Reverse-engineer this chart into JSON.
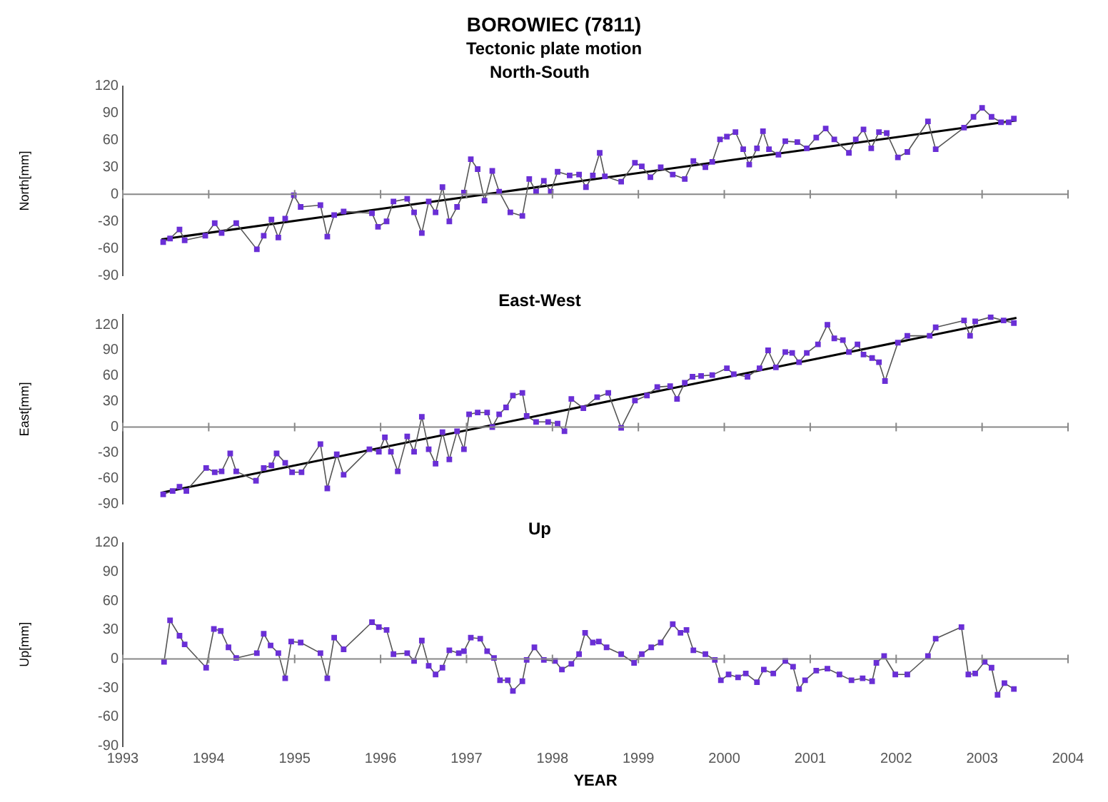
{
  "chart_data": [
    {
      "type": "line",
      "title": "North-South",
      "annotations": [
        "BOROWIEC (7811)",
        "Tectonic plate motion"
      ],
      "ylabel": "North[mm]",
      "ref_lines": [
        {
          "axis": "y",
          "value": 0,
          "color": "#888888"
        }
      ],
      "xlim": [
        1993,
        2004
      ],
      "xticks": [
        1993,
        1994,
        1995,
        1996,
        1997,
        1998,
        1999,
        2000,
        2001,
        2002,
        2003,
        2004
      ],
      "ylim": [
        -90,
        120
      ],
      "yticks": [
        -90,
        -60,
        -30,
        0,
        30,
        60,
        90,
        120
      ],
      "tick_labels": "y",
      "grid": false,
      "legend": false,
      "marker": "square",
      "line_style": "solid",
      "series": [
        {
          "color": "#6a2fd6",
          "x": [
            1993.47,
            1993.55,
            1993.66,
            1993.72,
            1993.96,
            1994.07,
            1994.15,
            1994.32,
            1994.56,
            1994.64,
            1994.73,
            1994.81,
            1994.89,
            1994.99,
            1995.07,
            1995.3,
            1995.38,
            1995.46,
            1995.57,
            1995.9,
            1995.97,
            1996.07,
            1996.15,
            1996.31,
            1996.39,
            1996.48,
            1996.56,
            1996.64,
            1996.72,
            1996.8,
            1996.89,
            1996.97,
            1997.05,
            1997.13,
            1997.21,
            1997.3,
            1997.38,
            1997.51,
            1997.65,
            1997.73,
            1997.81,
            1997.9,
            1997.98,
            1998.06,
            1998.2,
            1998.31,
            1998.39,
            1998.47,
            1998.55,
            1998.61,
            1998.8,
            1998.96,
            1999.04,
            1999.14,
            1999.26,
            1999.4,
            1999.54,
            1999.64,
            1999.78,
            1999.86,
            1999.95,
            2000.03,
            2000.13,
            2000.22,
            2000.29,
            2000.38,
            2000.45,
            2000.52,
            2000.63,
            2000.71,
            2000.85,
            2000.96,
            2001.07,
            2001.18,
            2001.28,
            2001.45,
            2001.53,
            2001.62,
            2001.71,
            2001.8,
            2001.89,
            2002.02,
            2002.13,
            2002.37,
            2002.46,
            2002.79,
            2002.9,
            2003.0,
            2003.11,
            2003.22,
            2003.31,
            2003.37
          ],
          "values": [
            -53,
            -49,
            -39,
            -51,
            -46,
            -32,
            -43,
            -32,
            -61,
            -46,
            -28,
            -48,
            -27,
            -1,
            -14,
            -12,
            -47,
            -23,
            -19,
            -21,
            -36,
            -30,
            -8,
            -5,
            -20,
            -43,
            -8,
            -20,
            8,
            -30,
            -14,
            2,
            39,
            28,
            -7,
            26,
            3,
            -20,
            -24,
            17,
            3,
            15,
            3,
            25,
            21,
            22,
            8,
            21,
            46,
            20,
            14,
            35,
            31,
            19,
            30,
            22,
            17,
            37,
            30,
            36,
            61,
            64,
            69,
            50,
            33,
            51,
            70,
            50,
            44,
            59,
            58,
            51,
            63,
            73,
            61,
            46,
            61,
            72,
            51,
            69,
            68,
            41,
            47,
            81,
            50,
            74,
            86,
            96,
            86,
            80,
            80,
            84
          ]
        },
        {
          "type": "line",
          "color": "#000000",
          "marker": "none",
          "x": [
            1993.45,
            2003.4
          ],
          "values": [
            -50,
            82
          ]
        }
      ]
    },
    {
      "type": "line",
      "title": "East-West",
      "ylabel": "East[mm]",
      "ref_lines": [
        {
          "axis": "y",
          "value": 0,
          "color": "#888888"
        }
      ],
      "xlim": [
        1993,
        2004
      ],
      "xticks": [
        1993,
        1994,
        1995,
        1996,
        1997,
        1998,
        1999,
        2000,
        2001,
        2002,
        2003,
        2004
      ],
      "ylim": [
        -90,
        132
      ],
      "yticks": [
        -90,
        -60,
        -30,
        0,
        30,
        60,
        90,
        120
      ],
      "tick_labels": "y",
      "grid": false,
      "legend": false,
      "marker": "square",
      "line_style": "solid",
      "series": [
        {
          "color": "#6a2fd6",
          "x": [
            1993.47,
            1993.58,
            1993.66,
            1993.74,
            1993.97,
            1994.07,
            1994.15,
            1994.25,
            1994.32,
            1994.55,
            1994.64,
            1994.73,
            1994.79,
            1994.89,
            1994.97,
            1995.08,
            1995.3,
            1995.38,
            1995.49,
            1995.57,
            1995.87,
            1995.98,
            1996.05,
            1996.12,
            1996.2,
            1996.31,
            1996.39,
            1996.48,
            1996.56,
            1996.64,
            1996.72,
            1996.8,
            1996.89,
            1996.97,
            1997.03,
            1997.13,
            1997.24,
            1997.3,
            1997.38,
            1997.46,
            1997.54,
            1997.65,
            1997.7,
            1997.81,
            1997.95,
            1998.06,
            1998.14,
            1998.22,
            1998.36,
            1998.52,
            1998.65,
            1998.8,
            1998.96,
            1999.1,
            1999.22,
            1999.37,
            1999.45,
            1999.54,
            1999.63,
            1999.73,
            1999.86,
            2000.03,
            2000.11,
            2000.27,
            2000.41,
            2000.51,
            2000.6,
            2000.71,
            2000.79,
            2000.87,
            2000.96,
            2001.09,
            2001.2,
            2001.28,
            2001.38,
            2001.45,
            2001.55,
            2001.62,
            2001.72,
            2001.8,
            2001.87,
            2002.02,
            2002.13,
            2002.39,
            2002.46,
            2002.79,
            2002.86,
            2002.92,
            2003.1,
            2003.25,
            2003.37
          ],
          "values": [
            -79,
            -75,
            -70,
            -75,
            -48,
            -53,
            -52,
            -31,
            -52,
            -63,
            -48,
            -45,
            -31,
            -42,
            -53,
            -53,
            -20,
            -72,
            -32,
            -56,
            -26,
            -29,
            -12,
            -29,
            -52,
            -11,
            -29,
            12,
            -26,
            -43,
            -6,
            -38,
            -5,
            -26,
            15,
            17,
            17,
            0,
            15,
            23,
            37,
            40,
            13,
            6,
            6,
            4,
            -5,
            33,
            22,
            35,
            40,
            -1,
            31,
            37,
            47,
            48,
            33,
            52,
            59,
            60,
            61,
            69,
            62,
            59,
            69,
            90,
            70,
            88,
            87,
            76,
            87,
            97,
            120,
            104,
            102,
            88,
            97,
            85,
            81,
            76,
            54,
            99,
            107,
            107,
            117,
            125,
            107,
            124,
            129,
            125,
            122
          ]
        },
        {
          "type": "line",
          "color": "#000000",
          "marker": "none",
          "x": [
            1993.45,
            2003.4
          ],
          "values": [
            -77,
            128
          ]
        }
      ]
    },
    {
      "type": "line",
      "title": "Up",
      "ylabel": "Up[mm]",
      "ref_lines": [
        {
          "axis": "y",
          "value": 0,
          "color": "#888888"
        }
      ],
      "xlabel": "YEAR",
      "xlim": [
        1993,
        2004
      ],
      "xticks": [
        1993,
        1994,
        1995,
        1996,
        1997,
        1998,
        1999,
        2000,
        2001,
        2002,
        2003,
        2004
      ],
      "ylim": [
        -90,
        120
      ],
      "yticks": [
        -90,
        -60,
        -30,
        0,
        30,
        60,
        90,
        120
      ],
      "grid": false,
      "legend": false,
      "marker": "square",
      "line_style": "solid",
      "series": [
        {
          "color": "#6a2fd6",
          "x": [
            1993.48,
            1993.55,
            1993.66,
            1993.72,
            1993.97,
            1994.06,
            1994.14,
            1994.23,
            1994.32,
            1994.56,
            1994.64,
            1994.72,
            1994.81,
            1994.89,
            1994.96,
            1995.07,
            1995.3,
            1995.38,
            1995.46,
            1995.57,
            1995.9,
            1995.98,
            1996.07,
            1996.15,
            1996.31,
            1996.39,
            1996.48,
            1996.56,
            1996.64,
            1996.72,
            1996.8,
            1996.91,
            1996.97,
            1997.05,
            1997.16,
            1997.24,
            1997.32,
            1997.39,
            1997.48,
            1997.54,
            1997.65,
            1997.7,
            1997.79,
            1997.9,
            1998.03,
            1998.11,
            1998.22,
            1998.31,
            1998.38,
            1998.47,
            1998.54,
            1998.63,
            1998.8,
            1998.95,
            1999.04,
            1999.15,
            1999.26,
            1999.4,
            1999.49,
            1999.56,
            1999.64,
            1999.78,
            1999.89,
            1999.96,
            2000.05,
            2000.16,
            2000.25,
            2000.38,
            2000.46,
            2000.57,
            2000.71,
            2000.8,
            2000.87,
            2000.94,
            2001.07,
            2001.2,
            2001.34,
            2001.48,
            2001.61,
            2001.72,
            2001.77,
            2001.86,
            2001.99,
            2002.13,
            2002.37,
            2002.46,
            2002.76,
            2002.84,
            2002.92,
            2003.03,
            2003.11,
            2003.18,
            2003.26,
            2003.37
          ],
          "values": [
            -3,
            40,
            24,
            15,
            -9,
            31,
            29,
            12,
            1,
            6,
            26,
            14,
            6,
            -20,
            18,
            17,
            6,
            -20,
            22,
            10,
            38,
            33,
            30,
            5,
            6,
            -2,
            19,
            -7,
            -16,
            -9,
            9,
            6,
            8,
            22,
            21,
            8,
            1,
            -22,
            -22,
            -33,
            -23,
            -1,
            12,
            -1,
            -2,
            -11,
            -5,
            5,
            27,
            17,
            18,
            12,
            5,
            -4,
            5,
            12,
            17,
            36,
            27,
            30,
            9,
            5,
            -1,
            -22,
            -16,
            -19,
            -15,
            -24,
            -11,
            -15,
            -2,
            -8,
            -31,
            -22,
            -12,
            -10,
            -16,
            -22,
            -20,
            -23,
            -4,
            3,
            -16,
            -16,
            3,
            21,
            33,
            -16,
            -15,
            -3,
            -9,
            -37,
            -25,
            -31
          ]
        }
      ]
    }
  ]
}
